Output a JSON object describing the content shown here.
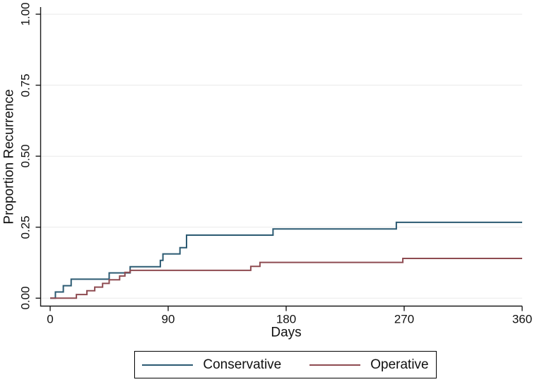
{
  "chart_data": {
    "type": "line",
    "subtype": "step-kaplan-meier-cumulative-incidence",
    "title": "",
    "xlabel": "Days",
    "ylabel": "Proportion Recurrence",
    "xlim": [
      0,
      360
    ],
    "ylim": [
      0,
      1
    ],
    "xticks": [
      {
        "value": 0,
        "label": "0"
      },
      {
        "value": 90,
        "label": "90"
      },
      {
        "value": 180,
        "label": "180"
      },
      {
        "value": 270,
        "label": "270"
      },
      {
        "value": 360,
        "label": "360"
      }
    ],
    "yticks": [
      {
        "value": 0.0,
        "label": "0.00"
      },
      {
        "value": 0.25,
        "label": "0.25"
      },
      {
        "value": 0.5,
        "label": "0.50"
      },
      {
        "value": 0.75,
        "label": "0.75"
      },
      {
        "value": 1.0,
        "label": "1.00"
      }
    ],
    "grid": "horizontal",
    "grid_color": "#eaeaea",
    "axis_color": "#1a1a1a",
    "legend_position": "bottom-center",
    "series": [
      {
        "name": "Conservative",
        "color": "#2b5a72",
        "steps": [
          [
            0,
            0
          ],
          [
            4,
            0.022
          ],
          [
            10,
            0.044
          ],
          [
            16,
            0.067
          ],
          [
            45,
            0.089
          ],
          [
            61,
            0.111
          ],
          [
            84,
            0.133
          ],
          [
            86,
            0.156
          ],
          [
            99,
            0.178
          ],
          [
            104,
            0.222
          ],
          [
            170,
            0.244
          ],
          [
            264,
            0.267
          ],
          [
            360,
            0.267
          ]
        ]
      },
      {
        "name": "Operative",
        "color": "#8e4b51",
        "steps": [
          [
            0,
            0
          ],
          [
            20,
            0.013
          ],
          [
            28,
            0.026
          ],
          [
            34,
            0.039
          ],
          [
            40,
            0.052
          ],
          [
            45,
            0.065
          ],
          [
            53,
            0.078
          ],
          [
            57,
            0.091
          ],
          [
            61,
            0.098
          ],
          [
            153,
            0.112
          ],
          [
            160,
            0.126
          ],
          [
            269,
            0.14
          ],
          [
            360,
            0.14
          ]
        ]
      }
    ]
  }
}
